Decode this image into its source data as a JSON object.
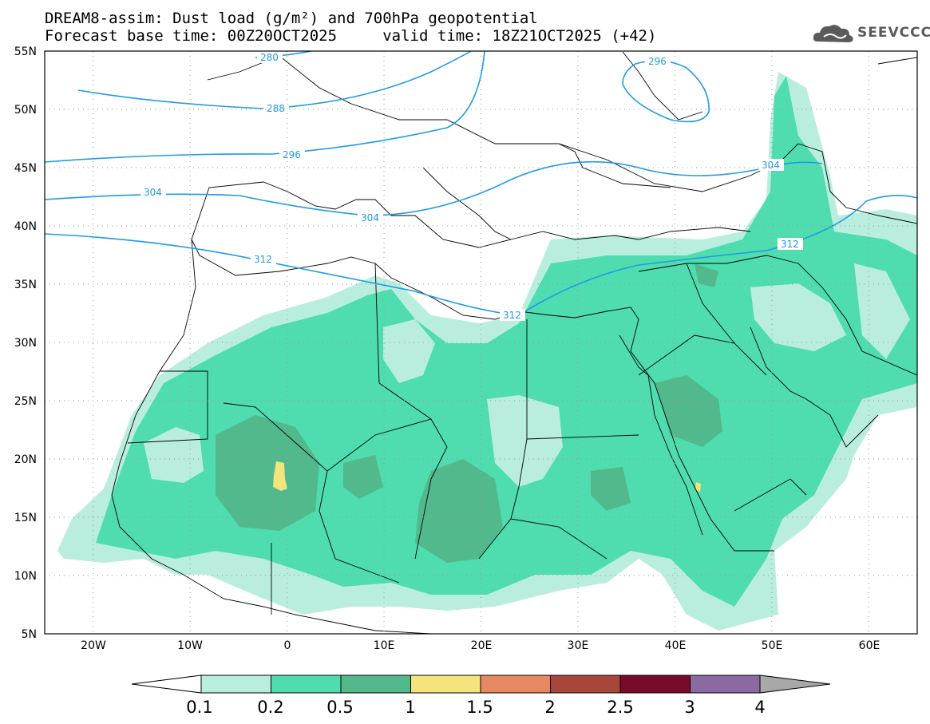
{
  "title": {
    "line1": "DREAM8-assim: Dust load (g/m²) and 700hPa geopotential",
    "line2": "Forecast base time: 00Z20OCT2025     valid time: 18Z21OCT2025 (+42)"
  },
  "logo": {
    "text": "SEEVCCC",
    "icon": "cloud-logo-icon"
  },
  "map": {
    "lon_range": [
      -25,
      65
    ],
    "lat_range": [
      5,
      55
    ],
    "lat_labels": [
      "55N",
      "50N",
      "45N",
      "40N",
      "35N",
      "30N",
      "25N",
      "20N",
      "15N",
      "10N",
      "5N"
    ],
    "lon_labels": [
      "20W",
      "10W",
      "0",
      "10E",
      "20E",
      "30E",
      "40E",
      "50E",
      "60E"
    ],
    "contour_labels": [
      "280",
      "288",
      "296",
      "304",
      "304",
      "304",
      "312",
      "312",
      "312",
      "296"
    ]
  },
  "colorbar": {
    "levels": [
      "0.1",
      "0.2",
      "0.5",
      "1",
      "1.5",
      "2",
      "2.5",
      "3",
      "4"
    ],
    "colors": [
      "#ffffff",
      "#b9eedf",
      "#4fdcae",
      "#52b98c",
      "#f3e57c",
      "#e88862",
      "#a8463a",
      "#7a0a2c",
      "#8a6aa0",
      "#a8a8a8"
    ]
  },
  "colors": {
    "contour": "#1e9be6",
    "dust_light": "#b9eedf",
    "dust_mid": "#4fdcae",
    "dust_dark": "#52b98c",
    "dust_yellow": "#f3e57c"
  }
}
